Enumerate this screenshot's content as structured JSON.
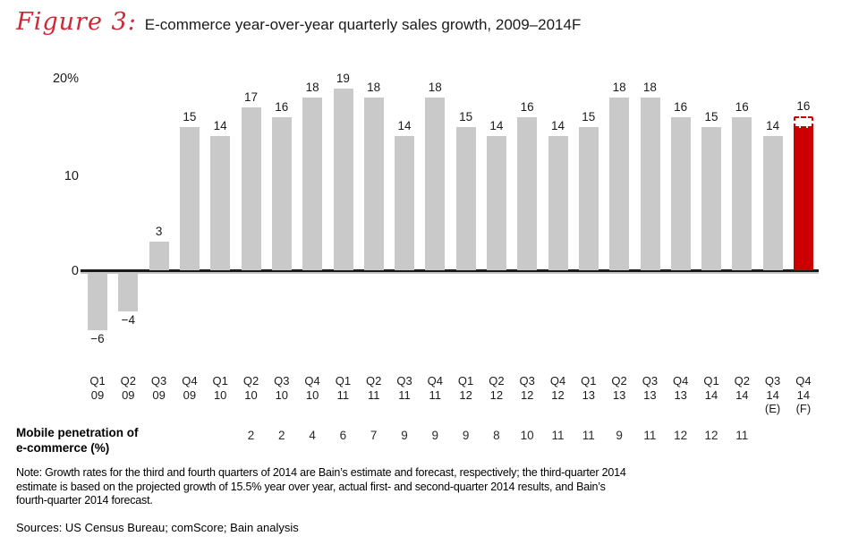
{
  "header": {
    "figure_label": "Figure 3:",
    "title": "E-commerce year-over-year quarterly sales growth, 2009–2014F"
  },
  "colors": {
    "bar": "#c9c9c9",
    "highlight": "#cc0000",
    "figure_label_red": "#cc2936",
    "text": "#1a1a1a"
  },
  "chart_data": {
    "type": "bar",
    "title": "E-commerce year-over-year quarterly sales growth, 2009–2014F",
    "xlabel": "",
    "ylabel": "",
    "ylim": [
      -8,
      21
    ],
    "grid": false,
    "legend": "none",
    "y_ticks": [
      "20%",
      "10",
      "0"
    ],
    "categories": [
      [
        "Q1",
        "09"
      ],
      [
        "Q2",
        "09"
      ],
      [
        "Q3",
        "09"
      ],
      [
        "Q4",
        "09"
      ],
      [
        "Q1",
        "10"
      ],
      [
        "Q2",
        "10"
      ],
      [
        "Q3",
        "10"
      ],
      [
        "Q4",
        "10"
      ],
      [
        "Q1",
        "11"
      ],
      [
        "Q2",
        "11"
      ],
      [
        "Q3",
        "11"
      ],
      [
        "Q4",
        "11"
      ],
      [
        "Q1",
        "12"
      ],
      [
        "Q2",
        "12"
      ],
      [
        "Q3",
        "12"
      ],
      [
        "Q4",
        "12"
      ],
      [
        "Q1",
        "13"
      ],
      [
        "Q2",
        "13"
      ],
      [
        "Q3",
        "13"
      ],
      [
        "Q4",
        "13"
      ],
      [
        "Q1",
        "14"
      ],
      [
        "Q2",
        "14"
      ],
      [
        "Q3",
        "14",
        "(E)"
      ],
      [
        "Q4",
        "14",
        "(F)"
      ]
    ],
    "values": [
      -6,
      -4,
      3,
      15,
      14,
      17,
      16,
      18,
      19,
      18,
      14,
      18,
      15,
      14,
      16,
      14,
      15,
      18,
      18,
      16,
      15,
      16,
      14,
      16
    ],
    "bar_labels": [
      "−6",
      "−4",
      "3",
      "15",
      "14",
      "17",
      "16",
      "18",
      "19",
      "18",
      "14",
      "18",
      "15",
      "14",
      "16",
      "14",
      "15",
      "18",
      "18",
      "16",
      "15",
      "16",
      "14",
      "16"
    ],
    "highlight_index": 23,
    "forecast_bar": {
      "index": 23,
      "solid_value": 15.05,
      "dashed_to_value": 16.1,
      "label": "16"
    },
    "series": [
      {
        "name": "YoY quarterly sales growth (%)",
        "values": [
          -6,
          -4,
          3,
          15,
          14,
          17,
          16,
          18,
          19,
          18,
          14,
          18,
          15,
          14,
          16,
          14,
          15,
          18,
          18,
          16,
          15,
          16,
          14,
          16
        ]
      },
      {
        "name": "Mobile penetration of e-commerce (%)",
        "values": [
          null,
          null,
          null,
          null,
          null,
          2,
          2,
          4,
          6,
          7,
          9,
          9,
          9,
          8,
          10,
          11,
          11,
          9,
          11,
          12,
          12,
          11,
          null,
          null
        ]
      }
    ],
    "mobile_penetration": [
      "",
      "",
      "",
      "",
      "",
      "2",
      "2",
      "4",
      "6",
      "7",
      "9",
      "9",
      "9",
      "8",
      "10",
      "11",
      "11",
      "9",
      "11",
      "12",
      "12",
      "11",
      "",
      ""
    ]
  },
  "mobile_row": {
    "label_line1": "Mobile penetration of",
    "label_line2": "e-commerce (%)"
  },
  "footer": {
    "note_lines": [
      "Note: Growth rates for the third and fourth quarters of 2014 are Bain’s estimate and forecast, respectively; the third-quarter 2014",
      "estimate is based on the projected growth of 15.5% year over year, actual first- and second-quarter 2014 results, and Bain’s",
      "fourth-quarter 2014 forecast."
    ],
    "sources": "Sources: US Census Bureau; comScore; Bain analysis"
  }
}
